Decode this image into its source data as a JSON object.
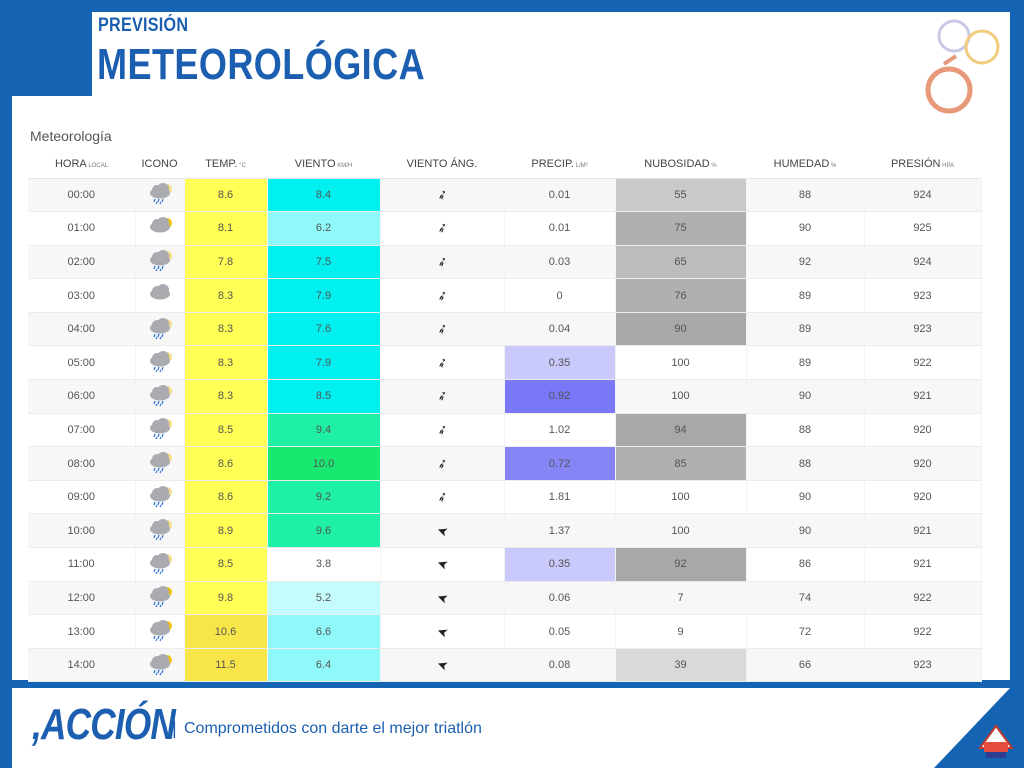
{
  "header": {
    "title_small": "PREVISIÓN",
    "title_big": "METEOROLÓGICA"
  },
  "panel": {
    "title": "Meteorología"
  },
  "columns": [
    {
      "label": "HORA",
      "unit": "LOCAL"
    },
    {
      "label": "ICONO",
      "unit": ""
    },
    {
      "label": "TEMP.",
      "unit": "°C"
    },
    {
      "label": "VIENTO",
      "unit": "KM/H"
    },
    {
      "label": "VIENTO ÁNG.",
      "unit": ""
    },
    {
      "label": "PRECIP.",
      "unit": "L/M²"
    },
    {
      "label": "NUBOSIDAD",
      "unit": "%"
    },
    {
      "label": "HUMEDAD",
      "unit": "%"
    },
    {
      "label": "PRESIÓN",
      "unit": "HPA"
    }
  ],
  "rows": [
    {
      "hora": "00:00",
      "icon": "rain-cloud-icon",
      "temp": "8.6",
      "viento": "8.4",
      "dir": "sw",
      "precip": "0.01",
      "nubosidad": "55",
      "humedad": "88",
      "presion": "924"
    },
    {
      "hora": "01:00",
      "icon": "partly-cloudy-icon",
      "temp": "8.1",
      "viento": "6.2",
      "dir": "sw",
      "precip": "0.01",
      "nubosidad": "75",
      "humedad": "90",
      "presion": "925"
    },
    {
      "hora": "02:00",
      "icon": "rain-cloud-icon",
      "temp": "7.8",
      "viento": "7.5",
      "dir": "sw",
      "precip": "0.03",
      "nubosidad": "65",
      "humedad": "92",
      "presion": "924"
    },
    {
      "hora": "03:00",
      "icon": "cloud-icon",
      "temp": "8.3",
      "viento": "7.9",
      "dir": "sw",
      "precip": "0",
      "nubosidad": "76",
      "humedad": "89",
      "presion": "923"
    },
    {
      "hora": "04:00",
      "icon": "rain-cloud-icon",
      "temp": "8.3",
      "viento": "7.6",
      "dir": "sw",
      "precip": "0.04",
      "nubosidad": "90",
      "humedad": "89",
      "presion": "923"
    },
    {
      "hora": "05:00",
      "icon": "rain-cloud-icon",
      "temp": "8.3",
      "viento": "7.9",
      "dir": "sw",
      "precip": "0.35",
      "nubosidad": "100",
      "humedad": "89",
      "presion": "922"
    },
    {
      "hora": "06:00",
      "icon": "rain-cloud-icon",
      "temp": "8.3",
      "viento": "8.5",
      "dir": "sw",
      "precip": "0.92",
      "nubosidad": "100",
      "humedad": "90",
      "presion": "921"
    },
    {
      "hora": "07:00",
      "icon": "rain-cloud-icon",
      "temp": "8.5",
      "viento": "9.4",
      "dir": "sw",
      "precip": "1.02",
      "nubosidad": "94",
      "humedad": "88",
      "presion": "920"
    },
    {
      "hora": "08:00",
      "icon": "rain-cloud-icon",
      "temp": "8.6",
      "viento": "10.0",
      "dir": "sw",
      "precip": "0.72",
      "nubosidad": "85",
      "humedad": "88",
      "presion": "920"
    },
    {
      "hora": "09:00",
      "icon": "rain-cloud-icon",
      "temp": "8.6",
      "viento": "9.2",
      "dir": "sw",
      "precip": "1.81",
      "nubosidad": "100",
      "humedad": "90",
      "presion": "920"
    },
    {
      "hora": "10:00",
      "icon": "rain-cloud-icon",
      "temp": "8.9",
      "viento": "9.6",
      "dir": "w",
      "precip": "1.37",
      "nubosidad": "100",
      "humedad": "90",
      "presion": "921"
    },
    {
      "hora": "11:00",
      "icon": "rain-cloud-icon",
      "temp": "8.5",
      "viento": "3.8",
      "dir": "w",
      "precip": "0.35",
      "nubosidad": "92",
      "humedad": "86",
      "presion": "921"
    },
    {
      "hora": "12:00",
      "icon": "sun-rain-icon",
      "temp": "9.8",
      "viento": "5.2",
      "dir": "w",
      "precip": "0.06",
      "nubosidad": "7",
      "humedad": "74",
      "presion": "922"
    },
    {
      "hora": "13:00",
      "icon": "sun-rain-icon",
      "temp": "10.6",
      "viento": "6.6",
      "dir": "w",
      "precip": "0.05",
      "nubosidad": "9",
      "humedad": "72",
      "presion": "922"
    },
    {
      "hora": "14:00",
      "icon": "sun-rain-icon",
      "temp": "11.5",
      "viento": "6.4",
      "dir": "w",
      "precip": "0.08",
      "nubosidad": "39",
      "humedad": "66",
      "presion": "923"
    }
  ],
  "footer": {
    "logo": ",ACCIÓN",
    "separator": "|",
    "tagline": "Comprometidos con darte el mejor triatlón"
  },
  "colors": {
    "brand_blue": "#1564b4",
    "temp_yellow": "#ffff55",
    "temp_gold": "#f8e54a"
  }
}
